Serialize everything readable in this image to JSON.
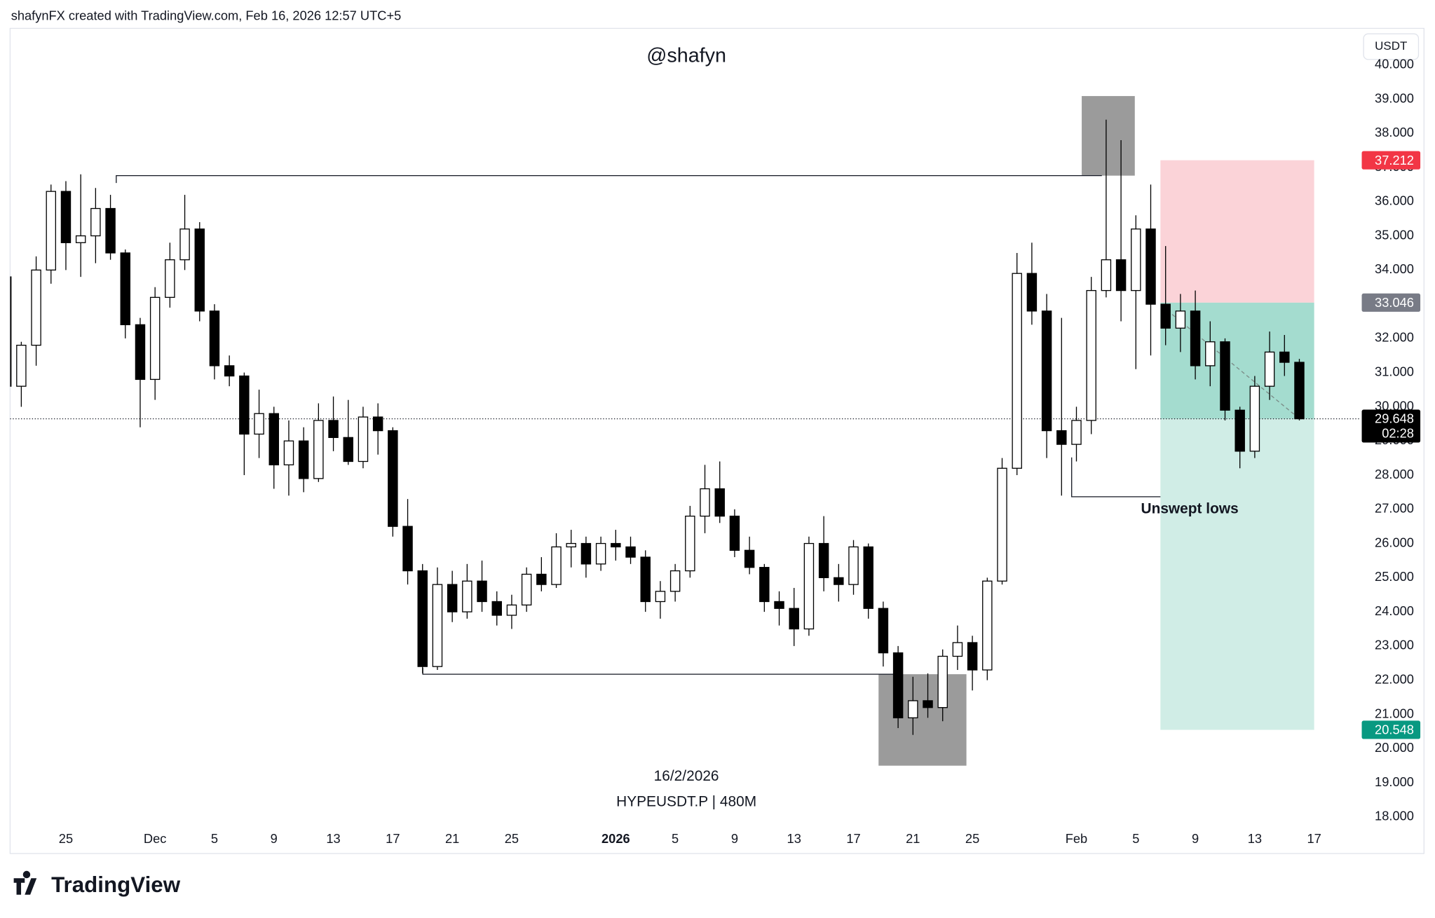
{
  "header": {
    "title": "shafynFX created with TradingView.com, Feb 16, 2026 12:57 UTC+5"
  },
  "footer": {
    "logo": "TradingView"
  },
  "chart_data": {
    "type": "candlestick",
    "title": "@shafyn",
    "symbol": "HYPEUSDT.P | 480M",
    "date_label": "16/2/2026",
    "currency": "USDT",
    "annotation": "Unswept lows",
    "countdown": "02:28",
    "last_price": 29.648,
    "position": {
      "stop": 37.212,
      "entry": 33.046,
      "target": 20.548,
      "stop_color": "#f23645",
      "entry_color": "#787b86",
      "target_color": "#089981"
    },
    "up_color": "#ffffff",
    "down_color": "#000000",
    "x": [
      "2025-11-21",
      "2025-11-22",
      "2025-11-23",
      "2025-11-24",
      "2025-11-25",
      "2025-11-26",
      "2025-11-27",
      "2025-11-28",
      "2025-11-29",
      "2025-11-30",
      "2025-12-01",
      "2025-12-02",
      "2025-12-03",
      "2025-12-04",
      "2025-12-05",
      "2025-12-06",
      "2025-12-07",
      "2025-12-08",
      "2025-12-09",
      "2025-12-10",
      "2025-12-11",
      "2025-12-12",
      "2025-12-13",
      "2025-12-14",
      "2025-12-15",
      "2025-12-16",
      "2025-12-17",
      "2025-12-18",
      "2025-12-19",
      "2025-12-20",
      "2025-12-21",
      "2025-12-22",
      "2025-12-23",
      "2025-12-24",
      "2025-12-25",
      "2025-12-26",
      "2025-12-27",
      "2025-12-28",
      "2025-12-29",
      "2025-12-30",
      "2025-12-31",
      "2026-01-01",
      "2026-01-02",
      "2026-01-03",
      "2026-01-04",
      "2026-01-05",
      "2026-01-06",
      "2026-01-07",
      "2026-01-08",
      "2026-01-09",
      "2026-01-10",
      "2026-01-11",
      "2026-01-12",
      "2026-01-13",
      "2026-01-14",
      "2026-01-15",
      "2026-01-16",
      "2026-01-17",
      "2026-01-18",
      "2026-01-19",
      "2026-01-20",
      "2026-01-21",
      "2026-01-22",
      "2026-01-23",
      "2026-01-24",
      "2026-01-25",
      "2026-01-26",
      "2026-01-27",
      "2026-01-28",
      "2026-01-29",
      "2026-01-30",
      "2026-01-31",
      "2026-02-01",
      "2026-02-02",
      "2026-02-03",
      "2026-02-04",
      "2026-02-05",
      "2026-02-06",
      "2026-02-07",
      "2026-02-08",
      "2026-02-09",
      "2026-02-10",
      "2026-02-11",
      "2026-02-12",
      "2026-02-13",
      "2026-02-14",
      "2026-02-15",
      "2026-02-16"
    ],
    "open": [
      33.8,
      30.6,
      31.8,
      34.0,
      36.3,
      34.8,
      35.0,
      35.8,
      34.5,
      32.4,
      30.8,
      33.2,
      34.3,
      35.2,
      32.8,
      31.2,
      30.9,
      29.2,
      29.8,
      28.3,
      29.0,
      27.9,
      29.6,
      29.1,
      28.4,
      29.7,
      29.3,
      26.5,
      25.2,
      22.4,
      24.8,
      24.0,
      24.9,
      24.3,
      23.9,
      24.2,
      25.1,
      24.8,
      25.9,
      26.0,
      25.4,
      26.0,
      25.9,
      25.6,
      24.3,
      24.6,
      25.2,
      26.8,
      27.6,
      26.8,
      25.8,
      25.3,
      24.3,
      24.1,
      23.5,
      26.0,
      25.0,
      24.8,
      25.9,
      24.1,
      22.8,
      20.9,
      21.4,
      21.2,
      22.7,
      23.1,
      22.3,
      24.9,
      28.2,
      33.9,
      32.8,
      29.3,
      28.9,
      29.6,
      33.4,
      34.3,
      33.4,
      35.2,
      33.0,
      32.3,
      32.8,
      31.2,
      31.9,
      29.9,
      28.7,
      30.6,
      31.6,
      31.3
    ],
    "high": [
      34.7,
      31.9,
      34.4,
      36.5,
      36.6,
      36.8,
      36.4,
      36.2,
      34.6,
      32.6,
      33.5,
      34.8,
      36.2,
      35.4,
      33.0,
      31.5,
      31.0,
      30.5,
      30.0,
      29.6,
      29.4,
      30.1,
      30.3,
      30.2,
      30.0,
      30.1,
      29.4,
      27.3,
      25.4,
      25.3,
      25.2,
      25.4,
      25.5,
      24.6,
      24.5,
      25.3,
      25.6,
      26.3,
      26.4,
      26.2,
      26.2,
      26.4,
      26.2,
      25.8,
      24.9,
      25.4,
      27.1,
      28.3,
      28.4,
      27.0,
      26.2,
      25.4,
      24.6,
      24.7,
      26.2,
      26.8,
      25.4,
      26.1,
      26.0,
      24.3,
      23.0,
      22.1,
      22.2,
      22.9,
      23.6,
      23.3,
      25.0,
      28.5,
      34.5,
      34.8,
      33.3,
      32.6,
      30.0,
      33.8,
      38.4,
      37.8,
      35.6,
      36.5,
      34.7,
      33.3,
      33.4,
      32.5,
      32.0,
      30.0,
      30.9,
      32.2,
      32.1,
      31.4
    ],
    "low": [
      29.3,
      30.0,
      31.2,
      33.6,
      34.0,
      33.8,
      34.2,
      34.3,
      32.0,
      29.4,
      30.2,
      32.9,
      34.0,
      32.5,
      30.8,
      30.6,
      28.0,
      28.5,
      27.6,
      27.4,
      27.5,
      27.8,
      28.7,
      28.3,
      28.2,
      28.6,
      26.2,
      24.8,
      22.2,
      22.3,
      23.7,
      23.8,
      24.0,
      23.6,
      23.5,
      24.0,
      24.6,
      24.7,
      25.3,
      25.0,
      25.2,
      25.5,
      25.4,
      24.0,
      23.8,
      24.3,
      25.0,
      26.3,
      26.6,
      25.6,
      25.1,
      24.0,
      23.6,
      23.0,
      23.3,
      24.6,
      24.3,
      24.5,
      23.8,
      22.4,
      20.6,
      20.4,
      20.9,
      20.8,
      22.3,
      21.7,
      22.0,
      24.8,
      28.0,
      32.4,
      28.5,
      27.4,
      28.4,
      29.2,
      33.2,
      32.5,
      31.1,
      31.5,
      31.8,
      31.6,
      30.8,
      30.6,
      29.6,
      28.2,
      28.5,
      30.2,
      30.9,
      29.6
    ],
    "close": [
      30.6,
      31.8,
      34.0,
      36.3,
      34.8,
      35.0,
      35.8,
      34.5,
      32.4,
      30.8,
      33.2,
      34.3,
      35.2,
      32.8,
      31.2,
      30.9,
      29.2,
      29.8,
      28.3,
      29.0,
      27.9,
      29.6,
      29.1,
      28.4,
      29.7,
      29.3,
      26.5,
      25.2,
      22.4,
      24.8,
      24.0,
      24.9,
      24.3,
      23.9,
      24.2,
      25.1,
      24.8,
      25.9,
      26.0,
      25.4,
      26.0,
      25.9,
      25.6,
      24.3,
      24.6,
      25.2,
      26.8,
      27.6,
      26.8,
      25.8,
      25.3,
      24.3,
      24.1,
      23.5,
      26.0,
      25.0,
      24.8,
      25.9,
      24.1,
      22.8,
      20.9,
      21.4,
      21.2,
      22.7,
      23.1,
      22.3,
      24.9,
      28.2,
      33.9,
      32.8,
      29.3,
      28.9,
      29.6,
      33.4,
      34.3,
      33.4,
      35.2,
      33.0,
      32.3,
      32.8,
      31.2,
      31.9,
      29.9,
      28.7,
      30.6,
      31.6,
      31.3,
      29.648
    ],
    "xlim": [
      "2025-11-21",
      "2026-02-20"
    ],
    "xticks": [
      {
        "value": "2025-11-25",
        "label": "25"
      },
      {
        "value": "2025-12-01",
        "label": "Dec"
      },
      {
        "value": "2025-12-05",
        "label": "5"
      },
      {
        "value": "2025-12-09",
        "label": "9"
      },
      {
        "value": "2025-12-13",
        "label": "13"
      },
      {
        "value": "2025-12-17",
        "label": "17"
      },
      {
        "value": "2025-12-21",
        "label": "21"
      },
      {
        "value": "2025-12-25",
        "label": "25"
      },
      {
        "value": "2026-01-01",
        "label": "2026"
      },
      {
        "value": "2026-01-05",
        "label": "5"
      },
      {
        "value": "2026-01-09",
        "label": "9"
      },
      {
        "value": "2026-01-13",
        "label": "13"
      },
      {
        "value": "2026-01-17",
        "label": "17"
      },
      {
        "value": "2026-01-21",
        "label": "21"
      },
      {
        "value": "2026-01-25",
        "label": "25"
      },
      {
        "value": "2026-02-01",
        "label": "Feb"
      },
      {
        "value": "2026-02-05",
        "label": "5"
      },
      {
        "value": "2026-02-09",
        "label": "9"
      },
      {
        "value": "2026-02-13",
        "label": "13"
      },
      {
        "value": "2026-02-17",
        "label": "17"
      }
    ],
    "ylim": [
      16.93,
      41.07
    ],
    "yticks": [
      {
        "value": 18,
        "label": "18.000"
      },
      {
        "value": 19,
        "label": "19.000"
      },
      {
        "value": 20,
        "label": "20.000"
      },
      {
        "value": 21,
        "label": "21.000"
      },
      {
        "value": 22,
        "label": "22.000"
      },
      {
        "value": 23,
        "label": "23.000"
      },
      {
        "value": 24,
        "label": "24.000"
      },
      {
        "value": 25,
        "label": "25.000"
      },
      {
        "value": 26,
        "label": "26.000"
      },
      {
        "value": 27,
        "label": "27.000"
      },
      {
        "value": 28,
        "label": "28.000"
      },
      {
        "value": 29,
        "label": "29.000"
      },
      {
        "value": 30,
        "label": "30.000"
      },
      {
        "value": 31,
        "label": "31.000"
      },
      {
        "value": 32,
        "label": "32.000"
      },
      {
        "value": 33,
        "label": "33.000"
      },
      {
        "value": 34,
        "label": "34.000"
      },
      {
        "value": 35,
        "label": "35.000"
      },
      {
        "value": 36,
        "label": "36.000"
      },
      {
        "value": 37,
        "label": "37.000"
      },
      {
        "value": 38,
        "label": "38.000"
      },
      {
        "value": 39,
        "label": "39.000"
      },
      {
        "value": 40,
        "label": "40.000"
      }
    ],
    "grid": false
  }
}
